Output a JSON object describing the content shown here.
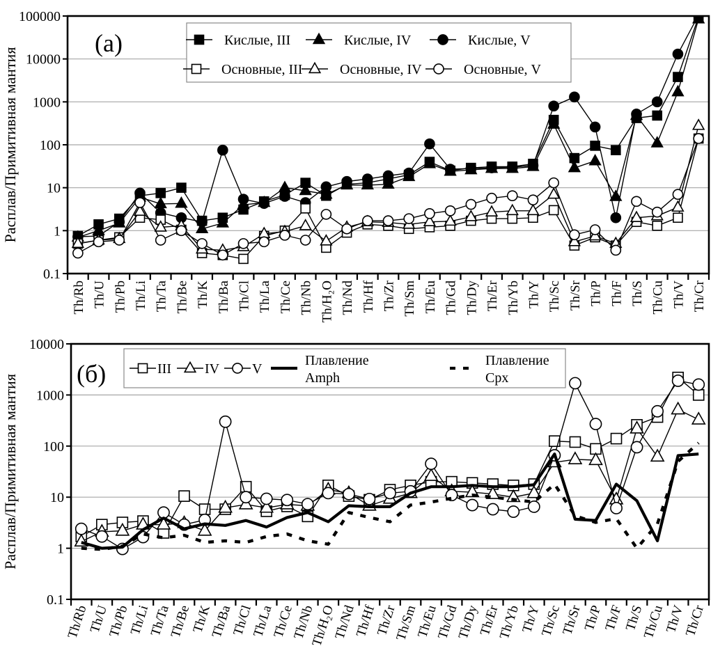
{
  "figure": {
    "y_axis_title": "Расплав/Примитивная мантия"
  },
  "chart_data": [
    {
      "type": "line",
      "panel_label": "(а)",
      "ylabel": "Расплав/Примитивная мантия",
      "scale": "log",
      "ylim": [
        0.1,
        100000
      ],
      "y_ticks": [
        "0.1",
        "1",
        "10",
        "100",
        "1000",
        "10000",
        "100000"
      ],
      "grid": true,
      "legend_position": "top-inside",
      "categories": [
        "Th/Rb",
        "Th/U",
        "Th/Pb",
        "Th/Li",
        "Th/Ta",
        "Th/Be",
        "Th/K",
        "Th/Ba",
        "Th/Cl",
        "Th/La",
        "Th/Ce",
        "Th/Nb",
        "Th/H₂O",
        "Th/Nd",
        "Th/Hf",
        "Th/Zr",
        "Th/Sm",
        "Th/Eu",
        "Th/Gd",
        "Th/Dy",
        "Th/Er",
        "Th/Yb",
        "Th/Y",
        "Th/Sc",
        "Th/Sr",
        "Th/P",
        "Th/F",
        "Th/S",
        "Th/Cu",
        "Th/V",
        "Th/Cr"
      ],
      "series": [
        {
          "name": "Кислые, III",
          "marker": "square",
          "fill": "filled",
          "line": "thin",
          "values": [
            0.75,
            1.4,
            1.9,
            6.5,
            7.5,
            10,
            1.7,
            2.0,
            3.1,
            4.8,
            6.8,
            13,
            6.5,
            12,
            13,
            16,
            20,
            40,
            25,
            29,
            31,
            31,
            36,
            380,
            49,
            95,
            75,
            420,
            480,
            3800,
            95000
          ]
        },
        {
          "name": "Кислые, IV",
          "marker": "triangle",
          "fill": "filled",
          "line": "thin",
          "values": [
            0.7,
            1.0,
            1.5,
            6.0,
            4.2,
            4.3,
            1.1,
            1.5,
            4.0,
            4.5,
            10,
            8.5,
            7.0,
            11.5,
            11.5,
            12,
            18,
            36,
            24,
            26,
            28,
            28,
            31,
            300,
            29,
            42,
            6.2,
            480,
            110,
            1700,
            85000
          ]
        },
        {
          "name": "Кислые, V",
          "marker": "circle",
          "fill": "filled",
          "line": "thin",
          "values": [
            0.72,
            0.75,
            1.6,
            7.5,
            2.6,
            2.0,
            1.6,
            75,
            5.4,
            4.3,
            6.3,
            4.5,
            10.5,
            14,
            16,
            19,
            22,
            105,
            27,
            28,
            29,
            30,
            33,
            800,
            1300,
            260,
            2.0,
            520,
            1000,
            13000,
            105000
          ]
        },
        {
          "name": "Основные, III",
          "marker": "square",
          "fill": "open",
          "line": "thin",
          "values": [
            0.5,
            0.6,
            0.7,
            2.0,
            1.8,
            1.05,
            0.3,
            0.27,
            0.22,
            0.75,
            1.0,
            3.3,
            0.4,
            0.9,
            1.4,
            1.3,
            1.1,
            1.2,
            1.3,
            1.7,
            1.9,
            1.9,
            2.0,
            3.0,
            0.45,
            0.7,
            0.45,
            1.6,
            1.3,
            2.0,
            140
          ]
        },
        {
          "name": "Основные, IV",
          "marker": "triangle",
          "fill": "open",
          "line": "thin",
          "values": [
            0.5,
            0.6,
            0.65,
            2.8,
            1.2,
            1.3,
            0.37,
            0.35,
            0.42,
            0.85,
            0.95,
            1.3,
            0.57,
            1.2,
            1.6,
            1.55,
            1.4,
            1.6,
            1.65,
            2.1,
            2.7,
            2.9,
            2.9,
            7.0,
            0.55,
            0.75,
            0.5,
            2.0,
            2.2,
            3.5,
            280
          ]
        },
        {
          "name": "Основные, V",
          "marker": "circle",
          "fill": "open",
          "line": "thin",
          "values": [
            0.3,
            0.55,
            0.6,
            4.5,
            0.6,
            1.0,
            0.5,
            0.27,
            0.5,
            0.55,
            0.78,
            0.6,
            2.4,
            1.1,
            1.7,
            1.7,
            1.9,
            2.5,
            2.9,
            4.1,
            5.7,
            6.5,
            5.2,
            13,
            0.8,
            1.05,
            0.35,
            4.8,
            2.7,
            7.0,
            140
          ]
        }
      ]
    },
    {
      "type": "line",
      "panel_label": "(б)",
      "ylabel": "Расплав/Примитивная мантия",
      "scale": "log",
      "ylim": [
        0.1,
        10000
      ],
      "y_ticks": [
        "0.1",
        "1",
        "10",
        "100",
        "1000",
        "10000"
      ],
      "grid": true,
      "legend_position": "top-inside",
      "categories": [
        "Th/Rb",
        "Th/U",
        "Th/Pb",
        "Th/Li",
        "Th/Ta",
        "Th/Be",
        "Th/K",
        "Th/Ba",
        "Th/Cl",
        "Th/La",
        "Th/Ce",
        "Th/Nb",
        "Th/H₂O",
        "Th/Nd",
        "Th/Hf",
        "Th/Zr",
        "Th/Sm",
        "Th/Eu",
        "Th/Gd",
        "Th/Dy",
        "Th/Er",
        "Th/Yb",
        "Th/Y",
        "Th/Sc",
        "Th/Sr",
        "Th/P",
        "Th/F",
        "Th/S",
        "Th/Cu",
        "Th/V",
        "Th/Cr"
      ],
      "series": [
        {
          "name": "III",
          "marker": "square",
          "fill": "open",
          "line": "thin",
          "values": [
            1.7,
            2.9,
            3.2,
            3.4,
            2.0,
            10.5,
            5.8,
            5.8,
            16,
            5.3,
            6.6,
            4.2,
            17,
            10.5,
            8.9,
            14,
            17,
            20,
            20,
            19,
            18,
            17,
            18,
            125,
            120,
            88,
            140,
            260,
            370,
            2200,
            1000
          ]
        },
        {
          "name": "IV",
          "marker": "triangle",
          "fill": "open",
          "line": "thin",
          "values": [
            1.35,
            2.1,
            2.2,
            2.9,
            2.9,
            3.1,
            2.2,
            6.2,
            7.2,
            6.2,
            7.2,
            6.8,
            14,
            12,
            6.8,
            9.3,
            12,
            26,
            13,
            12.5,
            11.5,
            10,
            12,
            48,
            55,
            53,
            9,
            220,
            62,
            520,
            330
          ]
        },
        {
          "name": "V",
          "marker": "circle",
          "fill": "open",
          "line": "thin",
          "values": [
            2.4,
            1.7,
            0.97,
            1.65,
            5.0,
            2.9,
            3.6,
            300,
            10,
            9.3,
            8.8,
            7.3,
            12,
            11.5,
            9.2,
            12,
            13,
            45,
            11,
            7.0,
            5.8,
            5.2,
            6.5,
            66,
            1700,
            270,
            6.1,
            95,
            480,
            1900,
            1600
          ]
        },
        {
          "name": "Плавление Amph",
          "legend_label_lines": [
            "Плавление",
            "Amph"
          ],
          "marker": "none",
          "fill": "none",
          "line": "thick",
          "values": [
            1.3,
            1.0,
            1.05,
            2.3,
            3.9,
            2.4,
            3.0,
            2.8,
            3.5,
            2.6,
            4.0,
            5.0,
            3.3,
            6.8,
            6.5,
            6.5,
            12,
            16,
            16,
            17,
            16,
            16,
            17.5,
            70,
            3.7,
            3.5,
            18,
            8.5,
            1.4,
            65,
            70
          ]
        },
        {
          "name": "Плавление Cpx",
          "legend_label_lines": [
            "Плавление",
            "Cpx"
          ],
          "marker": "none",
          "fill": "none",
          "line": "dashed",
          "values": [
            1.0,
            0.95,
            1.1,
            1.9,
            1.6,
            1.8,
            1.3,
            1.4,
            1.3,
            1.7,
            1.9,
            1.4,
            1.2,
            5.0,
            4.0,
            3.3,
            7.0,
            8.0,
            9.5,
            11,
            10,
            9.0,
            8.0,
            18,
            4.3,
            3.2,
            3.8,
            1.0,
            3.0,
            50,
            115
          ]
        }
      ]
    }
  ]
}
